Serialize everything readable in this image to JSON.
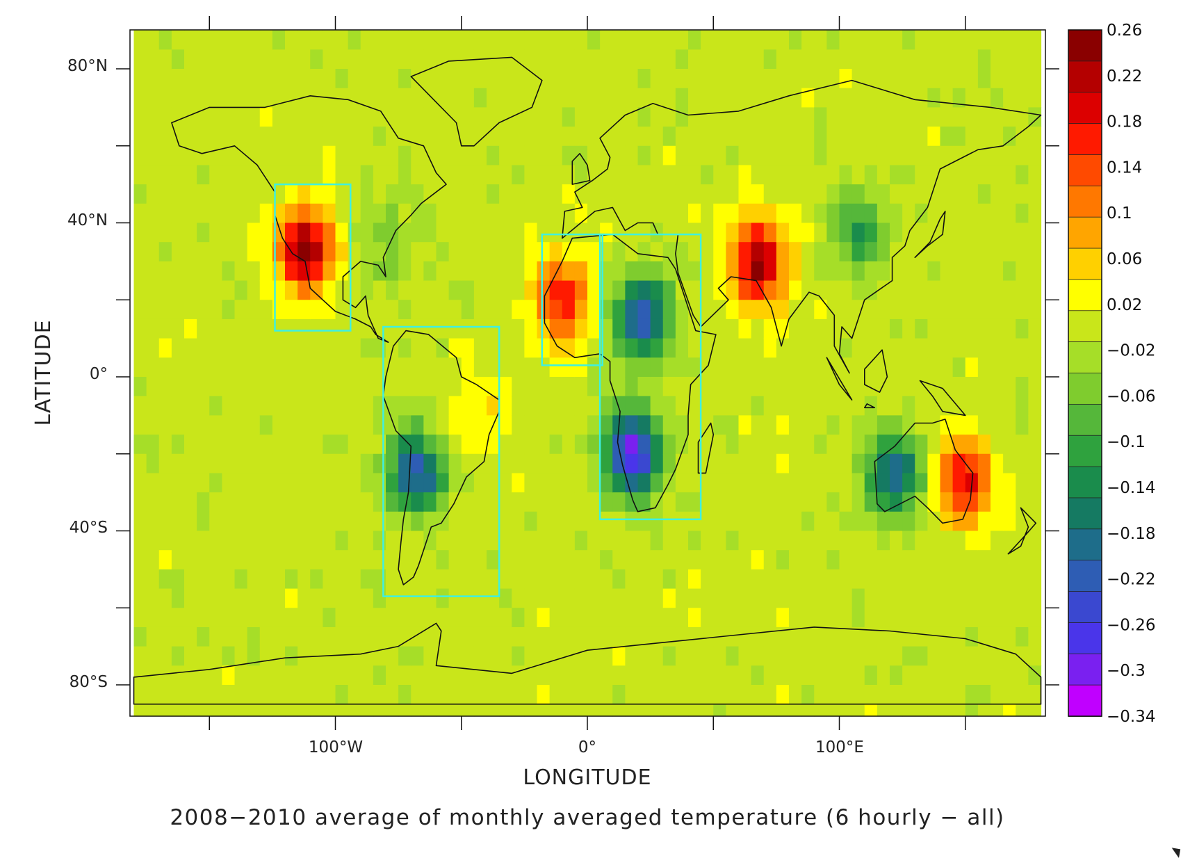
{
  "title": "2008−2010 average of monthly averaged temperature (6 hourly − all)",
  "x_axis": {
    "label": "LONGITUDE",
    "tick_labels": [
      "100°W",
      "0°",
      "100°E"
    ]
  },
  "y_axis": {
    "label": "LATITUDE",
    "tick_labels": [
      "80°N",
      "40°N",
      "0°",
      "40°S",
      "80°S"
    ]
  },
  "colorbar": {
    "labels": [
      "0.26",
      "0.22",
      "0.18",
      "0.14",
      "0.1",
      "0.06",
      "0.02",
      "−0.02",
      "−0.06",
      "−0.1",
      "−0.14",
      "−0.18",
      "−0.22",
      "−0.26",
      "−0.3",
      "−0.34"
    ],
    "colors": [
      "#8a0000",
      "#b40000",
      "#dc0000",
      "#ff1a00",
      "#ff4a00",
      "#ff7800",
      "#ffa500",
      "#ffd000",
      "#ffff00",
      "#c9e61a",
      "#a6de28",
      "#7fcc2e",
      "#55b73a",
      "#2fa23e",
      "#1a8c4c",
      "#157a62",
      "#1e6d8a",
      "#2e5db4",
      "#3a48d0",
      "#4a35ea",
      "#7a20f0",
      "#c000ff"
    ]
  },
  "chart_data": {
    "type": "heatmap",
    "title": "2008−2010 average of monthly averaged temperature (6 hourly − all)",
    "xlabel": "LONGITUDE",
    "ylabel": "LATITUDE",
    "xlim": [
      -180,
      180
    ],
    "ylim": [
      -90,
      90
    ],
    "value_range": [
      -0.34,
      0.26
    ],
    "background_value": 0.0,
    "anomalies": [
      {
        "lon": -112,
        "lat": 33,
        "value": 0.24
      },
      {
        "lon": -10,
        "lat": 20,
        "value": 0.18
      },
      {
        "lon": 68,
        "lat": 30,
        "value": 0.24
      },
      {
        "lon": 150,
        "lat": -27,
        "value": 0.18
      },
      {
        "lon": -42,
        "lat": -8,
        "value": 0.05
      },
      {
        "lon": -68,
        "lat": -25,
        "value": -0.22
      },
      {
        "lon": 22,
        "lat": 15,
        "value": -0.24
      },
      {
        "lon": 18,
        "lat": -20,
        "value": -0.3
      },
      {
        "lon": 122,
        "lat": -25,
        "value": -0.2
      },
      {
        "lon": 108,
        "lat": 38,
        "value": -0.12
      },
      {
        "lon": -80,
        "lat": 35,
        "value": -0.06
      }
    ],
    "highlight_regions": [
      {
        "lon": [
          -124,
          -94
        ],
        "lat": [
          12,
          50
        ]
      },
      {
        "lon": [
          -81,
          -35
        ],
        "lat": [
          -57,
          13
        ]
      },
      {
        "lon": [
          -18,
          6
        ],
        "lat": [
          3,
          37
        ]
      },
      {
        "lon": [
          5,
          45
        ],
        "lat": [
          -37,
          37
        ]
      }
    ]
  }
}
